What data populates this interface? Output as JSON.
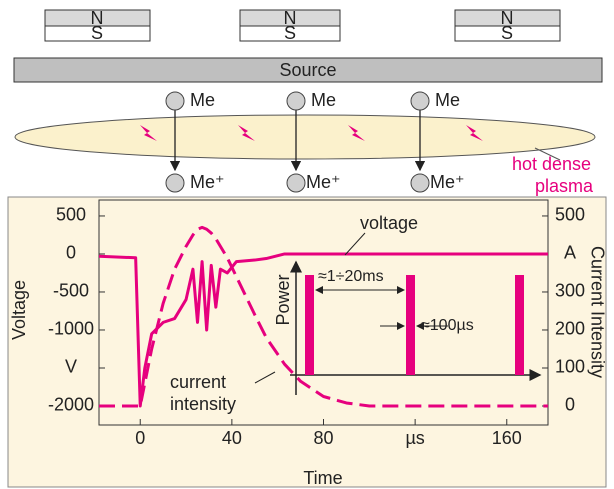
{
  "diagram": {
    "magnets": [
      {
        "north": "N",
        "south": "S"
      },
      {
        "north": "N",
        "south": "S"
      },
      {
        "north": "N",
        "south": "S"
      }
    ],
    "source": "Source",
    "atoms": [
      "Me",
      "Me",
      "Me"
    ],
    "ions": [
      "Me⁺",
      "Me⁺",
      "Me⁺"
    ],
    "plasma_label": [
      "hot dense",
      "plasma"
    ]
  },
  "chart_data": {
    "type": "line",
    "x": [
      -18,
      -2,
      0,
      2,
      5,
      10,
      15,
      20,
      23,
      25,
      27,
      29,
      31,
      33,
      35,
      38,
      42,
      50,
      55,
      63,
      70,
      80,
      90,
      100,
      120,
      178
    ],
    "series": [
      {
        "name": "voltage",
        "color": "#e6007e",
        "axis": "y",
        "values": [
          -30,
          -50,
          -2000,
          -1500,
          -1050,
          -900,
          -850,
          -600,
          -200,
          -900,
          -100,
          -1000,
          -150,
          -700,
          -200,
          -250,
          -100,
          -80,
          -60,
          0,
          0,
          0,
          0,
          0,
          0,
          0
        ]
      },
      {
        "name": "current intensity",
        "color": "#e6007e",
        "axis": "y2",
        "values": [
          0,
          0,
          0,
          60,
          150,
          270,
          360,
          420,
          450,
          465,
          470,
          465,
          455,
          440,
          420,
          390,
          340,
          240,
          180,
          110,
          65,
          25,
          8,
          0,
          0,
          0
        ]
      }
    ],
    "annotations": [
      "voltage",
      "current",
      "intensity"
    ],
    "x_label": "Time",
    "y_label": "Voltage",
    "y2_label": "Current Intensity",
    "xlim": [
      -18,
      178
    ],
    "ylim": [
      -2250,
      710
    ],
    "y2lim": [
      -50,
      542
    ],
    "xticks": [
      0,
      40,
      80,
      {
        "value": 120,
        "label": "µs"
      },
      160
    ],
    "yticks": [
      500,
      0,
      -500,
      -1000,
      {
        "value": -1500,
        "label": "V"
      },
      -2000
    ],
    "y2ticks": [
      500,
      {
        "value": 400,
        "label": "A"
      },
      300,
      200,
      100,
      0
    ],
    "grid": false,
    "inset": {
      "y_label": "Power",
      "period": "≈1÷20ms",
      "pulse": "≈100µs"
    }
  }
}
